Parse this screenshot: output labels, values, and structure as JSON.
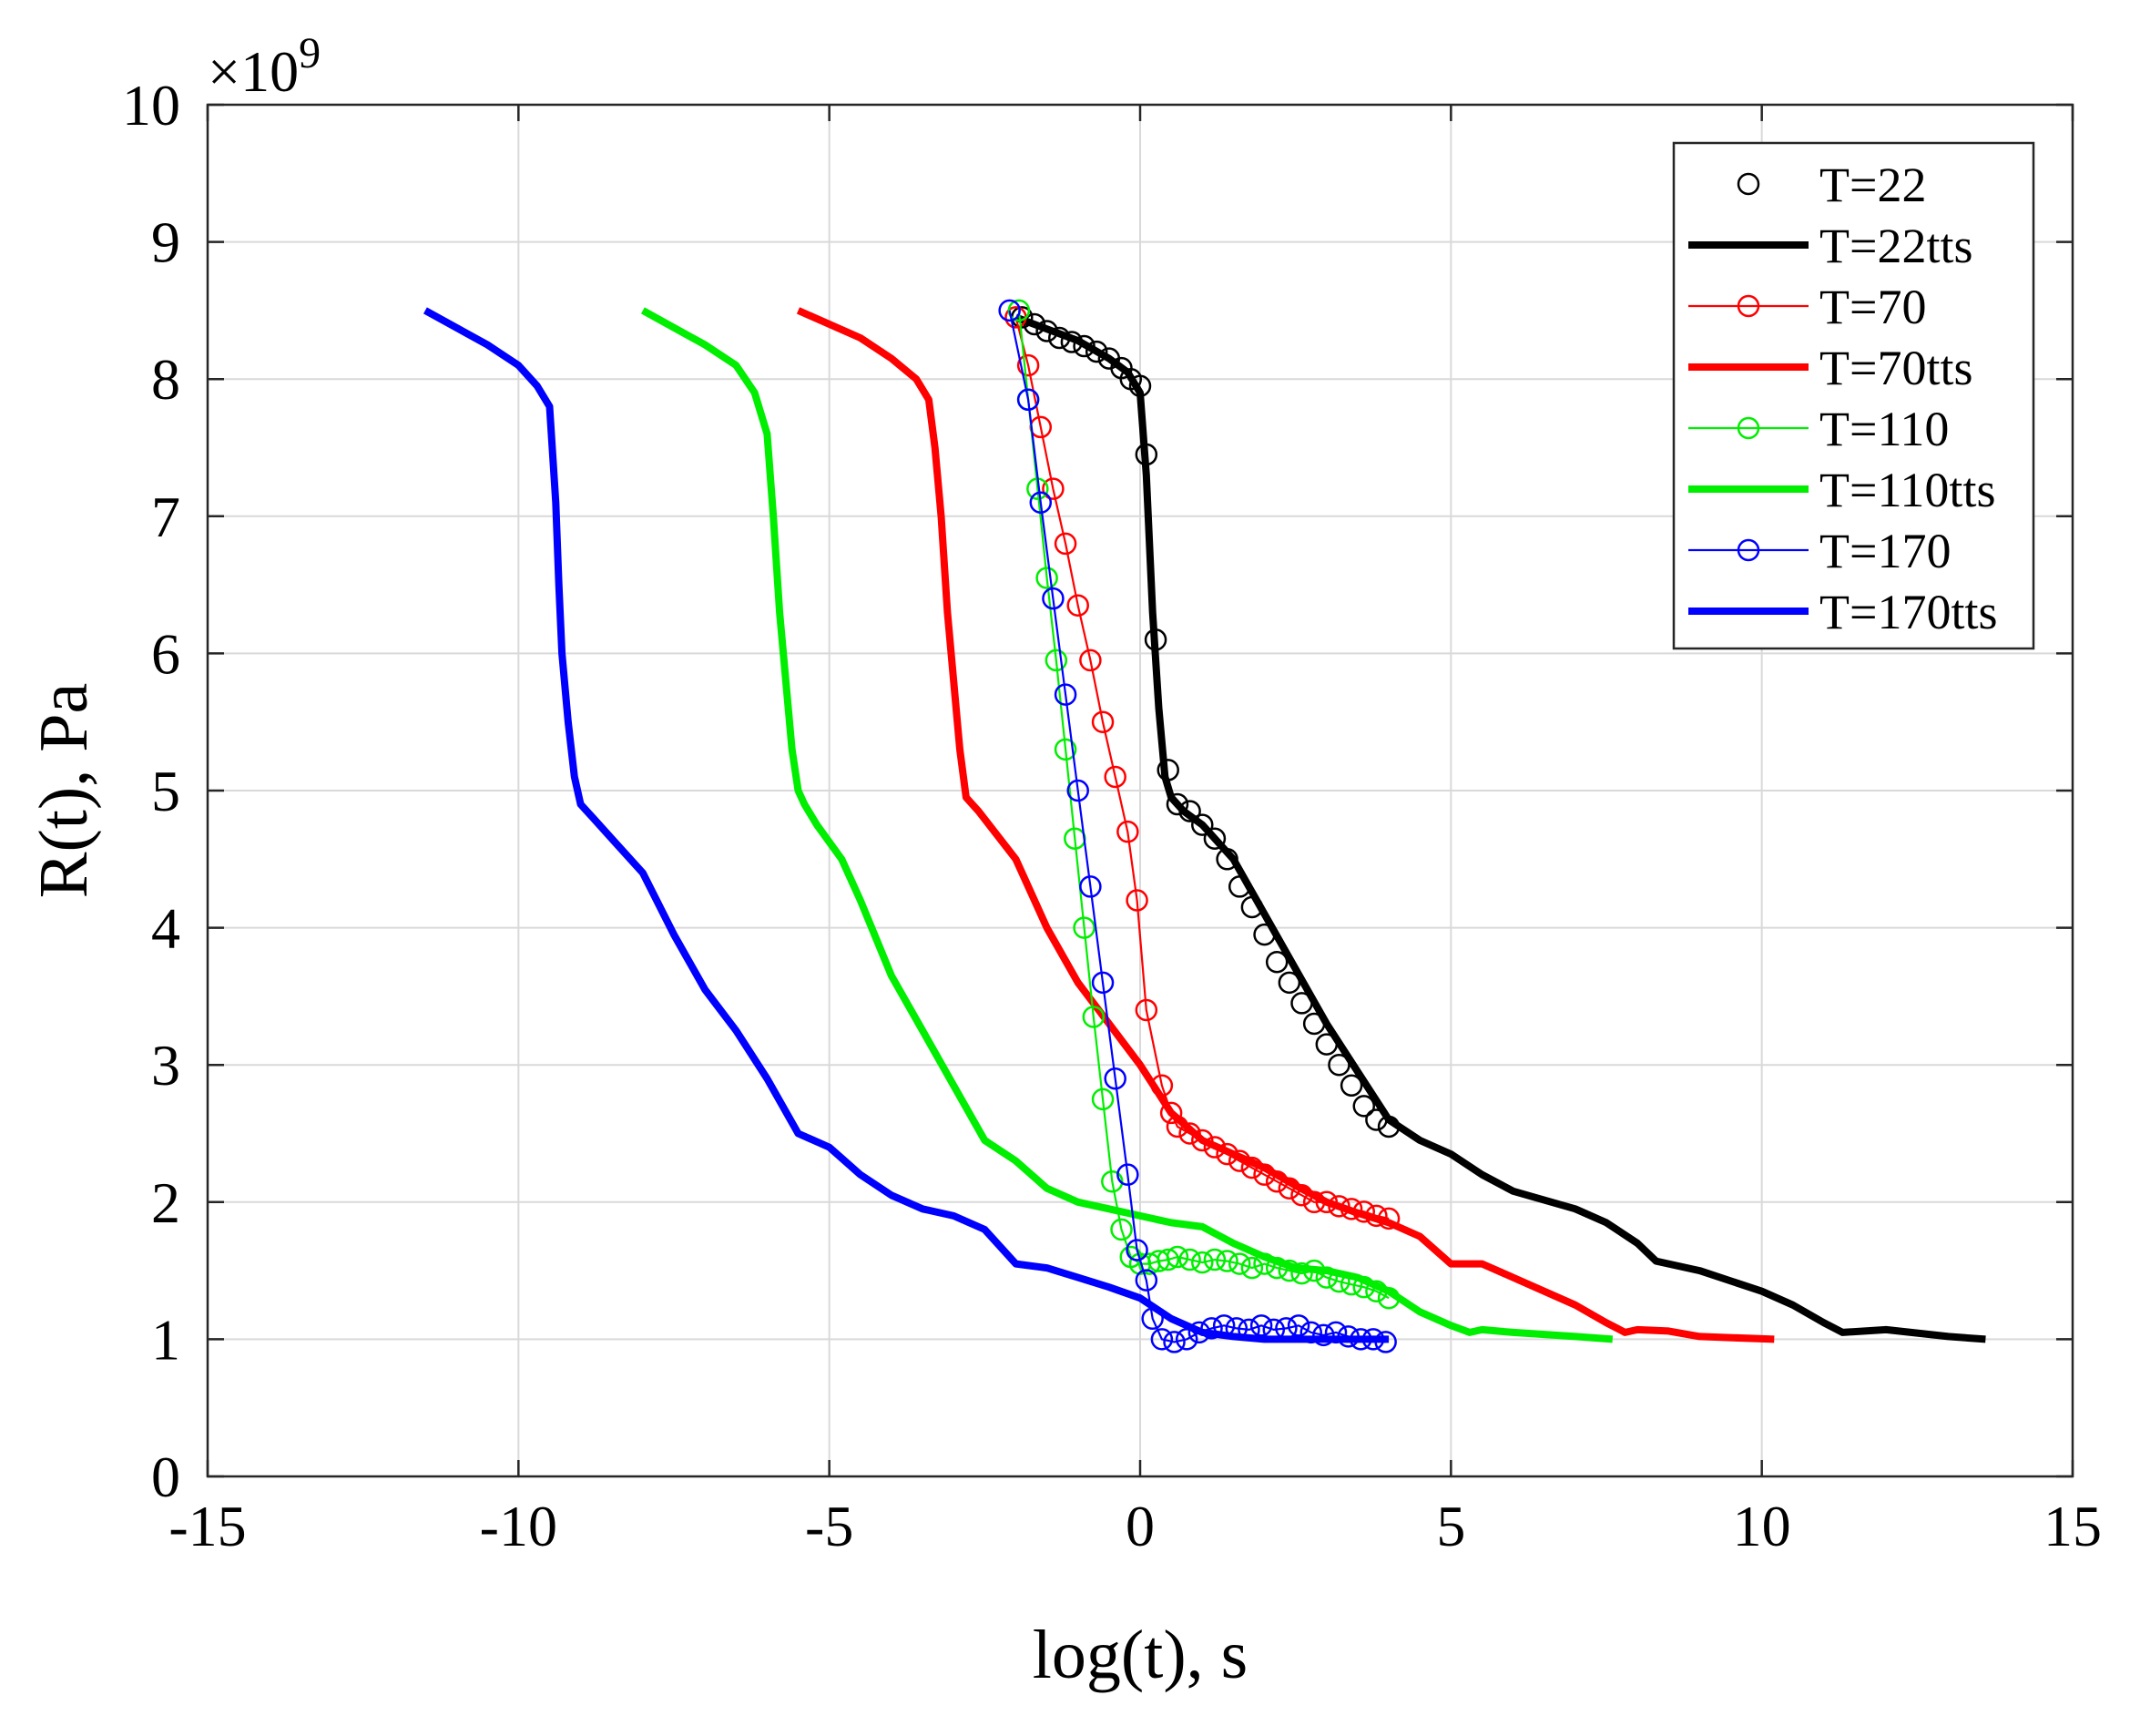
{
  "chart_data": {
    "type": "line",
    "title": "",
    "xlabel": "log(t), s",
    "ylabel": "R(t), Pa",
    "y_exponent_label": "×10",
    "y_exponent_power": "9",
    "xlim": [
      -15,
      15
    ],
    "ylim": [
      0,
      10
    ],
    "xticks": [
      -15,
      -10,
      -5,
      0,
      5,
      10,
      15
    ],
    "yticks": [
      0,
      1,
      2,
      3,
      4,
      5,
      6,
      7,
      8,
      9,
      10
    ],
    "xtick_labels": [
      "-15",
      "-10",
      "-5",
      "0",
      "5",
      "10",
      "15"
    ],
    "ytick_labels": [
      "0",
      "1",
      "2",
      "3",
      "4",
      "5",
      "6",
      "7",
      "8",
      "9",
      "10"
    ],
    "grid": true,
    "legend_position": "top-right",
    "series": [
      {
        "name": "T=22",
        "color": "#000000",
        "style": "markers",
        "x": [
          -1.9,
          -1.7,
          -1.5,
          -1.3,
          -1.1,
          -0.9,
          -0.7,
          -0.5,
          -0.3,
          -0.15,
          0.0,
          0.1,
          0.25,
          0.45,
          0.6,
          0.8,
          1.0,
          1.2,
          1.4,
          1.6,
          1.8,
          2.0,
          2.2,
          2.4,
          2.6,
          2.8,
          3.0,
          3.2,
          3.4,
          3.6,
          3.8,
          4.0
        ],
        "y": [
          8.45,
          8.4,
          8.35,
          8.3,
          8.27,
          8.24,
          8.2,
          8.15,
          8.08,
          8.0,
          7.95,
          7.45,
          6.1,
          5.15,
          4.9,
          4.85,
          4.75,
          4.65,
          4.5,
          4.3,
          4.15,
          3.95,
          3.75,
          3.6,
          3.45,
          3.3,
          3.15,
          3.0,
          2.85,
          2.7,
          2.6,
          2.55
        ]
      },
      {
        "name": "T=22tts",
        "color": "#000000",
        "style": "line",
        "x": [
          -2.0,
          -1.0,
          -0.5,
          -0.2,
          0.0,
          0.1,
          0.2,
          0.3,
          0.4,
          0.5,
          0.7,
          1.0,
          1.5,
          2.0,
          2.5,
          3.0,
          3.5,
          4.0,
          4.5,
          5.0,
          5.5,
          6.0,
          7.0,
          7.5,
          8.0,
          8.3,
          9.0,
          10.0,
          10.5,
          11.0,
          11.3,
          12.0,
          13.0,
          13.6
        ],
        "y": [
          8.45,
          8.28,
          8.15,
          8.05,
          7.9,
          7.3,
          6.3,
          5.6,
          5.1,
          4.95,
          4.85,
          4.75,
          4.5,
          4.1,
          3.7,
          3.3,
          2.95,
          2.6,
          2.45,
          2.35,
          2.2,
          2.08,
          1.95,
          1.85,
          1.7,
          1.57,
          1.5,
          1.35,
          1.25,
          1.12,
          1.05,
          1.07,
          1.02,
          1.0
        ]
      },
      {
        "name": "T=70",
        "color": "#ff0000",
        "style": "line-markers",
        "x": [
          -2.0,
          -1.8,
          -1.6,
          -1.4,
          -1.2,
          -1.0,
          -0.8,
          -0.6,
          -0.4,
          -0.2,
          -0.05,
          0.1,
          0.35,
          0.5,
          0.6,
          0.8,
          1.0,
          1.2,
          1.4,
          1.6,
          1.8,
          2.0,
          2.2,
          2.4,
          2.6,
          2.8,
          3.0,
          3.2,
          3.4,
          3.6,
          3.8,
          4.0
        ],
        "y": [
          8.45,
          8.1,
          7.65,
          7.2,
          6.8,
          6.35,
          5.95,
          5.5,
          5.1,
          4.7,
          4.2,
          3.4,
          2.85,
          2.65,
          2.55,
          2.5,
          2.45,
          2.4,
          2.35,
          2.3,
          2.25,
          2.2,
          2.15,
          2.1,
          2.05,
          2.0,
          2.0,
          1.97,
          1.95,
          1.93,
          1.9,
          1.88
        ]
      },
      {
        "name": "T=70tts",
        "color": "#ff0000",
        "style": "line",
        "x": [
          -5.5,
          -4.5,
          -4.0,
          -3.6,
          -3.4,
          -3.3,
          -3.2,
          -3.1,
          -3.0,
          -2.9,
          -2.8,
          -2.6,
          -2.0,
          -1.5,
          -1.0,
          -0.5,
          0.0,
          0.5,
          1.0,
          1.5,
          2.0,
          2.5,
          3.0,
          3.5,
          4.0,
          4.5,
          5.0,
          5.5,
          6.0,
          7.0,
          7.5,
          7.8,
          8.0,
          8.5,
          9.0,
          10.2
        ],
        "y": [
          8.5,
          8.3,
          8.15,
          8.0,
          7.85,
          7.5,
          7.0,
          6.3,
          5.8,
          5.3,
          4.95,
          4.85,
          4.5,
          4.0,
          3.6,
          3.3,
          3.0,
          2.65,
          2.45,
          2.35,
          2.25,
          2.12,
          2.0,
          1.92,
          1.85,
          1.75,
          1.55,
          1.55,
          1.45,
          1.25,
          1.12,
          1.05,
          1.07,
          1.06,
          1.02,
          1.0
        ]
      },
      {
        "name": "T=110",
        "color": "#00ee00",
        "style": "line-markers",
        "x": [
          -1.95,
          -1.8,
          -1.65,
          -1.5,
          -1.35,
          -1.2,
          -1.05,
          -0.9,
          -0.75,
          -0.6,
          -0.45,
          -0.3,
          -0.15,
          0.0,
          0.15,
          0.3,
          0.45,
          0.6,
          0.8,
          1.0,
          1.2,
          1.4,
          1.6,
          1.8,
          2.0,
          2.2,
          2.4,
          2.6,
          2.8,
          3.0,
          3.2,
          3.4,
          3.6,
          3.8,
          4.0
        ],
        "y": [
          8.5,
          7.85,
          7.2,
          6.55,
          5.95,
          5.3,
          4.65,
          4.0,
          3.35,
          2.75,
          2.15,
          1.8,
          1.6,
          1.55,
          1.55,
          1.57,
          1.58,
          1.6,
          1.58,
          1.56,
          1.58,
          1.57,
          1.55,
          1.52,
          1.55,
          1.52,
          1.5,
          1.48,
          1.5,
          1.45,
          1.42,
          1.4,
          1.38,
          1.35,
          1.3
        ]
      },
      {
        "name": "T=110tts",
        "color": "#00ee00",
        "style": "line",
        "x": [
          -8.0,
          -7.0,
          -6.5,
          -6.2,
          -6.0,
          -5.9,
          -5.8,
          -5.7,
          -5.6,
          -5.5,
          -5.4,
          -5.2,
          -4.8,
          -4.5,
          -4.0,
          -3.5,
          -3.0,
          -2.5,
          -2.0,
          -1.5,
          -1.0,
          -0.5,
          0.0,
          0.5,
          1.0,
          1.5,
          2.0,
          2.5,
          3.0,
          3.5,
          4.0,
          4.5,
          5.0,
          5.3,
          5.5,
          6.0,
          7.0,
          7.6
        ],
        "y": [
          8.5,
          8.25,
          8.1,
          7.9,
          7.6,
          7.0,
          6.3,
          5.8,
          5.3,
          5.0,
          4.9,
          4.75,
          4.5,
          4.2,
          3.65,
          3.25,
          2.85,
          2.45,
          2.3,
          2.1,
          2.0,
          1.95,
          1.9,
          1.85,
          1.82,
          1.7,
          1.6,
          1.52,
          1.5,
          1.45,
          1.35,
          1.2,
          1.1,
          1.05,
          1.07,
          1.05,
          1.02,
          1.0
        ]
      },
      {
        "name": "T=170",
        "color": "#0000ff",
        "style": "line-markers",
        "x": [
          -2.1,
          -1.8,
          -1.6,
          -1.4,
          -1.2,
          -1.0,
          -0.8,
          -0.6,
          -0.4,
          -0.2,
          -0.05,
          0.1,
          0.2,
          0.35,
          0.55,
          0.75,
          0.95,
          1.15,
          1.35,
          1.55,
          1.75,
          1.95,
          2.15,
          2.35,
          2.55,
          2.75,
          2.95,
          3.15,
          3.35,
          3.55,
          3.75,
          3.95
        ],
        "y": [
          8.5,
          7.85,
          7.1,
          6.4,
          5.7,
          5.0,
          4.3,
          3.6,
          2.9,
          2.2,
          1.65,
          1.43,
          1.15,
          1.0,
          0.98,
          1.0,
          1.05,
          1.08,
          1.1,
          1.08,
          1.07,
          1.1,
          1.07,
          1.08,
          1.1,
          1.05,
          1.03,
          1.05,
          1.02,
          1.0,
          1.0,
          0.98
        ]
      },
      {
        "name": "T=170tts",
        "color": "#0000ff",
        "style": "line",
        "x": [
          -11.5,
          -10.5,
          -10.0,
          -9.7,
          -9.5,
          -9.4,
          -9.35,
          -9.3,
          -9.2,
          -9.1,
          -9.0,
          -8.8,
          -8.5,
          -8.0,
          -7.5,
          -7.0,
          -6.5,
          -6.0,
          -5.5,
          -5.0,
          -4.5,
          -4.0,
          -3.5,
          -3.0,
          -2.5,
          -2.0,
          -1.5,
          -1.0,
          -0.5,
          0.0,
          0.5,
          1.0,
          1.5,
          2.0,
          3.0,
          4.0
        ],
        "y": [
          8.5,
          8.25,
          8.1,
          7.95,
          7.8,
          7.1,
          6.5,
          6.0,
          5.5,
          5.1,
          4.9,
          4.8,
          4.65,
          4.4,
          3.95,
          3.55,
          3.25,
          2.9,
          2.5,
          2.4,
          2.2,
          2.05,
          1.95,
          1.9,
          1.8,
          1.55,
          1.52,
          1.45,
          1.38,
          1.3,
          1.15,
          1.05,
          1.02,
          1.0,
          1.0,
          1.0
        ]
      }
    ]
  }
}
